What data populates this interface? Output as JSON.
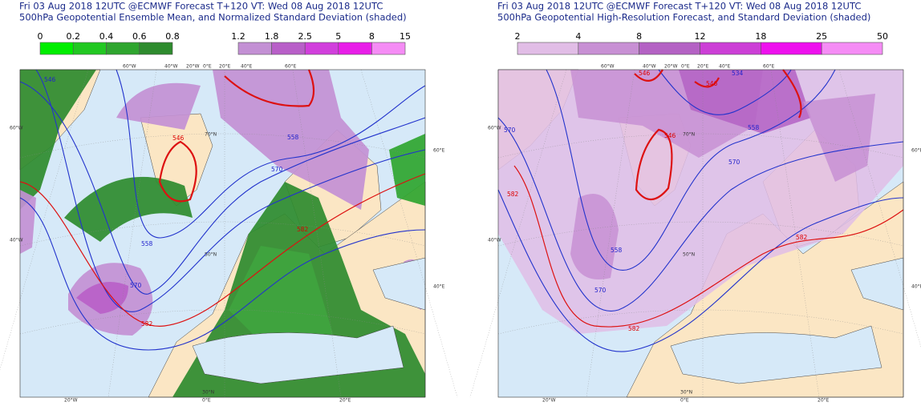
{
  "panels": [
    {
      "title_line1": "Fri 03 Aug 2018 12UTC @ECMWF Forecast T+120 VT: Wed 08 Aug 2018 12UTC",
      "title_line2": "500hPa Geopotential Ensemble Mean, and Normalized Standard Deviation (shaded)",
      "colorbars": [
        {
          "ticks": [
            0,
            0.2,
            0.4,
            0.6,
            0.8
          ],
          "colors": [
            "#00ee00",
            "#22c822",
            "#2fa52f",
            "#2e8b2e"
          ]
        },
        {
          "ticks": [
            1.2,
            1.8,
            2.5,
            5,
            8,
            15
          ],
          "colors": [
            "#c390d4",
            "#b85fc8",
            "#d13fdc",
            "#e81ee8",
            "#f58cf5"
          ]
        }
      ],
      "contour_labels": [
        "546",
        "558",
        "570",
        "546",
        "558",
        "570",
        "582",
        "582"
      ],
      "grid_labels": [
        "60°W",
        "40°W",
        "20°W",
        "0°E",
        "20°E",
        "40°E",
        "60°E",
        "20°W",
        "0°E",
        "20°E",
        "60°W",
        "40°W",
        "60°E",
        "40°E",
        "70°N",
        "50°N",
        "30°N"
      ]
    },
    {
      "title_line1": "Fri 03 Aug 2018 12UTC @ECMWF Forecast T+120 VT: Wed 08 Aug 2018 12UTC",
      "title_line2": "500hPa Geopotential High-Resolution Forecast, and Standard Deviation (shaded)",
      "colorbars": [
        {
          "ticks": [
            2,
            4,
            8,
            12,
            18,
            25,
            50
          ],
          "colors": [
            "#e1bde6",
            "#c890d4",
            "#b462c4",
            "#cc3fd6",
            "#ee10ee",
            "#f58cf5"
          ]
        }
      ],
      "contour_labels": [
        "546",
        "546",
        "546",
        "534",
        "558",
        "570",
        "582",
        "582",
        "558",
        "570",
        "570",
        "582"
      ],
      "grid_labels": [
        "60°W",
        "40°W",
        "20°W",
        "0°E",
        "20°E",
        "40°E",
        "60°E",
        "20°W",
        "0°E",
        "20°E",
        "60°W",
        "40°W",
        "60°E",
        "40°E",
        "70°N",
        "50°N",
        "30°N"
      ]
    }
  ]
}
